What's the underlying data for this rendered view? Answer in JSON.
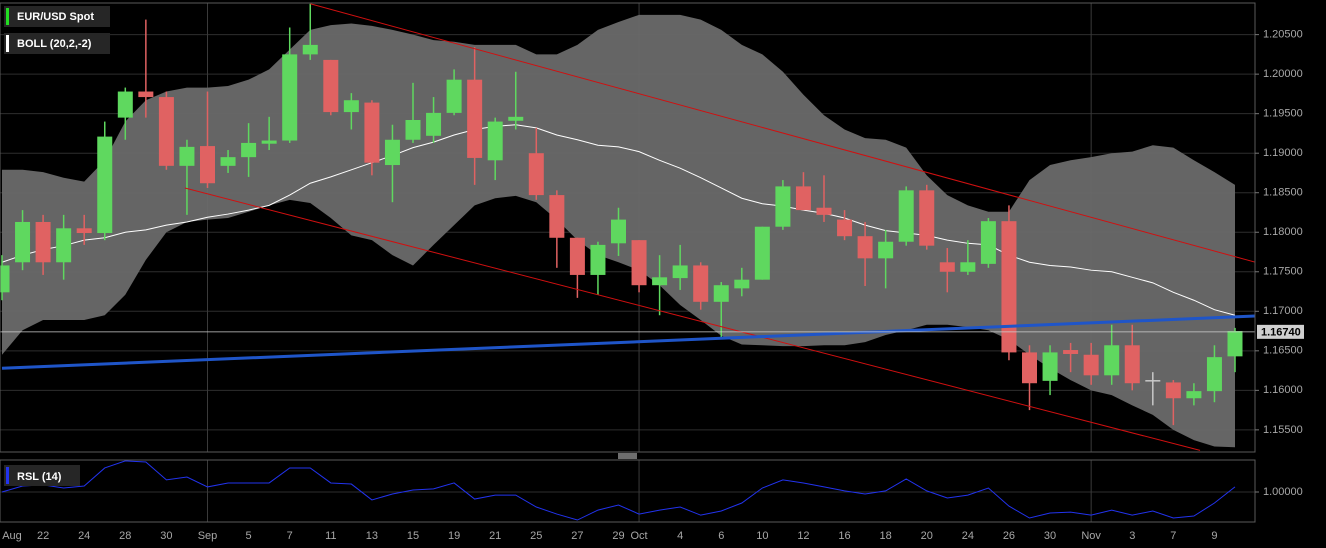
{
  "chart_data": [
    {
      "type": "candlestick",
      "name": "EUR/USD Spot",
      "categories": [
        "Aug",
        null,
        "22",
        null,
        "24",
        null,
        "28",
        null,
        "30",
        null,
        "Sep",
        null,
        "5",
        null,
        "7",
        null,
        "11",
        null,
        "13",
        null,
        "15",
        null,
        "19",
        null,
        "21",
        null,
        "25",
        null,
        "27",
        null,
        "29",
        "Oct",
        null,
        "4",
        null,
        "6",
        null,
        "10",
        null,
        "12",
        null,
        "16",
        null,
        "18",
        null,
        "20",
        null,
        "24",
        null,
        "26",
        null,
        "30",
        null,
        "Nov",
        null,
        "3",
        null,
        "7",
        null,
        "9",
        null
      ],
      "open": [
        1.1724,
        1.1762,
        1.1813,
        1.1762,
        1.1805,
        1.1799,
        1.1945,
        1.1978,
        1.1971,
        1.1884,
        1.1909,
        1.1884,
        1.1895,
        1.1912,
        1.1916,
        1.2025,
        1.2018,
        1.1952,
        1.1964,
        1.1885,
        1.1917,
        1.1922,
        1.1951,
        1.1993,
        1.1891,
        1.1941,
        1.19,
        1.1847,
        1.1793,
        1.1746,
        1.1786,
        1.179,
        1.1733,
        1.1742,
        1.1758,
        1.1712,
        1.1729,
        1.174,
        1.1807,
        1.1858,
        1.1831,
        1.1816,
        1.1795,
        1.1767,
        1.1788,
        1.1853,
        1.1762,
        1.175,
        1.176,
        1.1814,
        1.1648,
        1.1612,
        1.1651,
        1.1645,
        1.1619,
        1.1657,
        1.1613,
        1.161,
        1.159,
        1.1599,
        1.1643
      ],
      "high": [
        1.1771,
        1.1828,
        1.1822,
        1.1822,
        1.1822,
        1.194,
        1.1983,
        1.2069,
        1.1978,
        1.1917,
        1.1978,
        1.1904,
        1.1938,
        1.1946,
        1.2059,
        1.2089,
        1.2018,
        1.1976,
        1.1967,
        1.1936,
        1.1989,
        1.1971,
        1.2006,
        1.2034,
        1.1945,
        1.2003,
        1.1932,
        1.1853,
        1.1793,
        1.1788,
        1.1831,
        1.179,
        1.1771,
        1.1784,
        1.1762,
        1.1737,
        1.1755,
        1.1807,
        1.1866,
        1.1876,
        1.1872,
        1.1828,
        1.1813,
        1.1803,
        1.1858,
        1.186,
        1.178,
        1.179,
        1.1818,
        1.1834,
        1.1657,
        1.1657,
        1.166,
        1.166,
        1.1683,
        1.1683,
        1.1623,
        1.1613,
        1.1609,
        1.1657,
        1.1679
      ],
      "low": [
        1.1714,
        1.1752,
        1.1746,
        1.174,
        1.1784,
        1.179,
        1.1917,
        1.1945,
        1.1879,
        1.1822,
        1.1856,
        1.1875,
        1.187,
        1.1904,
        1.1913,
        1.2018,
        1.1948,
        1.193,
        1.1872,
        1.1838,
        1.1913,
        1.1913,
        1.1948,
        1.186,
        1.1866,
        1.193,
        1.1841,
        1.1755,
        1.1717,
        1.1721,
        1.177,
        1.1724,
        1.1695,
        1.1727,
        1.1702,
        1.1666,
        1.1719,
        1.174,
        1.1803,
        1.1828,
        1.1813,
        1.179,
        1.1732,
        1.1729,
        1.1783,
        1.1778,
        1.1724,
        1.1746,
        1.1755,
        1.1638,
        1.1575,
        1.1594,
        1.1623,
        1.1607,
        1.1607,
        1.16,
        1.1581,
        1.1556,
        1.1581,
        1.1585,
        1.1623
      ],
      "close": [
        1.1758,
        1.1813,
        1.1762,
        1.1805,
        1.1799,
        1.1921,
        1.1978,
        1.1971,
        1.1884,
        1.1908,
        1.1862,
        1.1895,
        1.1913,
        1.1916,
        1.2025,
        1.2037,
        1.1952,
        1.1967,
        1.1888,
        1.1917,
        1.1942,
        1.1951,
        1.1993,
        1.1894,
        1.194,
        1.1946,
        1.1847,
        1.1793,
        1.1746,
        1.1784,
        1.1816,
        1.1733,
        1.1743,
        1.1758,
        1.1712,
        1.1733,
        1.174,
        1.1807,
        1.1858,
        1.1828,
        1.1822,
        1.1795,
        1.1767,
        1.1788,
        1.1853,
        1.1783,
        1.175,
        1.1762,
        1.1814,
        1.1648,
        1.1609,
        1.1648,
        1.1646,
        1.1619,
        1.1657,
        1.1609,
        1.1613,
        1.159,
        1.1599,
        1.1642,
        1.1675
      ],
      "up_color": "#5fd85f",
      "down_color": "#e06262",
      "flat_color": "#c8c8c8",
      "legend_color": "#22dd22",
      "overlay": {
        "type": "bollinger",
        "name": "BOLL (20,2,-2)",
        "color": "#ffffff",
        "fill": "#6a6a6a",
        "upper": [
          1.1879,
          1.1879,
          1.1876,
          1.1869,
          1.1864,
          1.1891,
          1.194,
          1.1967,
          1.1978,
          1.1983,
          1.1983,
          1.1985,
          1.1993,
          1.2006,
          1.2031,
          1.2056,
          1.2062,
          1.2064,
          1.2061,
          1.2056,
          1.205,
          1.2043,
          1.2041,
          1.2037,
          1.2037,
          1.2037,
          1.2025,
          1.2025,
          1.2037,
          1.2056,
          1.2066,
          1.2075,
          1.2075,
          1.2075,
          1.2069,
          1.2056,
          1.2037,
          1.2025,
          1.2003,
          1.1974,
          1.1948,
          1.193,
          1.1919,
          1.1917,
          1.1907,
          1.1872,
          1.1847,
          1.1834,
          1.1826,
          1.1826,
          1.1866,
          1.1885,
          1.1891,
          1.1895,
          1.19,
          1.1902,
          1.191,
          1.1907,
          1.1891,
          1.1876,
          1.186
        ],
        "middle": [
          1.1762,
          1.1771,
          1.1778,
          1.1783,
          1.179,
          1.1793,
          1.18,
          1.1803,
          1.1809,
          1.1813,
          1.1819,
          1.1823,
          1.1828,
          1.1834,
          1.1847,
          1.1862,
          1.187,
          1.1879,
          1.1888,
          1.1897,
          1.1907,
          1.1914,
          1.1923,
          1.193,
          1.1934,
          1.1936,
          1.1932,
          1.1923,
          1.1917,
          1.191,
          1.1908,
          1.1902,
          1.1891,
          1.1881,
          1.1869,
          1.1856,
          1.1843,
          1.1836,
          1.1833,
          1.1828,
          1.1824,
          1.1818,
          1.1809,
          1.1802,
          1.1799,
          1.1796,
          1.179,
          1.1786,
          1.1784,
          1.1771,
          1.1762,
          1.1758,
          1.1756,
          1.1752,
          1.175,
          1.1743,
          1.1736,
          1.1724,
          1.1714,
          1.1702,
          1.1695
        ],
        "lower": [
          1.1645,
          1.1676,
          1.1689,
          1.1689,
          1.1689,
          1.1695,
          1.1721,
          1.1765,
          1.18,
          1.1813,
          1.1816,
          1.1818,
          1.1826,
          1.1834,
          1.1841,
          1.1837,
          1.1818,
          1.1796,
          1.179,
          1.1771,
          1.1758,
          1.1784,
          1.1809,
          1.1834,
          1.1843,
          1.1846,
          1.1838,
          1.1816,
          1.179,
          1.1771,
          1.1762,
          1.1752,
          1.1733,
          1.1708,
          1.1689,
          1.1669,
          1.1658,
          1.1657,
          1.1656,
          1.1656,
          1.1657,
          1.1657,
          1.1661,
          1.167,
          1.1676,
          1.1683,
          1.1683,
          1.168,
          1.1676,
          1.1664,
          1.1645,
          1.1628,
          1.1613,
          1.16,
          1.1594,
          1.1581,
          1.1569,
          1.155,
          1.1537,
          1.1529,
          1.1528
        ]
      },
      "trendlines": [
        {
          "color": "#d01010",
          "width": 1,
          "points": [
            [
              15,
              1.2089
            ],
            [
              61,
              1.1762
            ]
          ]
        },
        {
          "color": "#d01010",
          "width": 1,
          "points": [
            [
              8.9,
              1.1856
            ],
            [
              58.3,
              1.1524
            ]
          ]
        },
        {
          "color": "#1f55c8",
          "width": 3,
          "points": [
            [
              0,
              1.1628
            ],
            [
              61,
              1.1694
            ]
          ]
        }
      ],
      "last_price": {
        "value": 1.1674,
        "label": "1.16740"
      },
      "ylim": [
        1.1522,
        1.209
      ],
      "yticks": [
        {
          "value": 1.155,
          "label": "1.15500"
        },
        {
          "value": 1.16,
          "label": "1.16000"
        },
        {
          "value": 1.165,
          "label": "1.16500"
        },
        {
          "value": 1.17,
          "label": "1.17000"
        },
        {
          "value": 1.175,
          "label": "1.17500"
        },
        {
          "value": 1.18,
          "label": "1.18000"
        },
        {
          "value": 1.185,
          "label": "1.18500"
        },
        {
          "value": 1.19,
          "label": "1.19000"
        },
        {
          "value": 1.195,
          "label": "1.19500"
        },
        {
          "value": 1.2,
          "label": "1.20000"
        },
        {
          "value": 1.205,
          "label": "1.20500"
        }
      ],
      "grid": true
    },
    {
      "type": "line",
      "name": "RSL (14)",
      "color": "#2233ee",
      "values": [
        1.0,
        1.0027,
        1.0032,
        1.0018,
        1.0027,
        1.0109,
        1.0141,
        1.0136,
        1.0055,
        1.0068,
        1.0023,
        1.0041,
        1.0041,
        1.0041,
        1.0109,
        1.0109,
        1.0041,
        1.0036,
        0.9964,
        0.9991,
        1.0009,
        1.0014,
        1.0041,
        0.9968,
        0.9986,
        0.9986,
        0.9932,
        0.99,
        0.9873,
        0.9918,
        0.9941,
        0.99,
        0.9918,
        0.9932,
        0.9895,
        0.9914,
        0.995,
        1.0018,
        1.0055,
        1.0041,
        1.0023,
        1.0005,
        0.9991,
        1.0005,
        1.0059,
        1.0005,
        0.9973,
        0.9986,
        1.0018,
        0.9936,
        0.9882,
        0.9905,
        0.9909,
        0.9895,
        0.9918,
        0.9895,
        0.9914,
        0.9882,
        0.9891,
        0.995,
        1.0023
      ],
      "ylim": [
        0.9864,
        1.0145
      ],
      "yticks": [
        {
          "value": 1,
          "label": "1.00000"
        }
      ],
      "grid": true
    }
  ]
}
